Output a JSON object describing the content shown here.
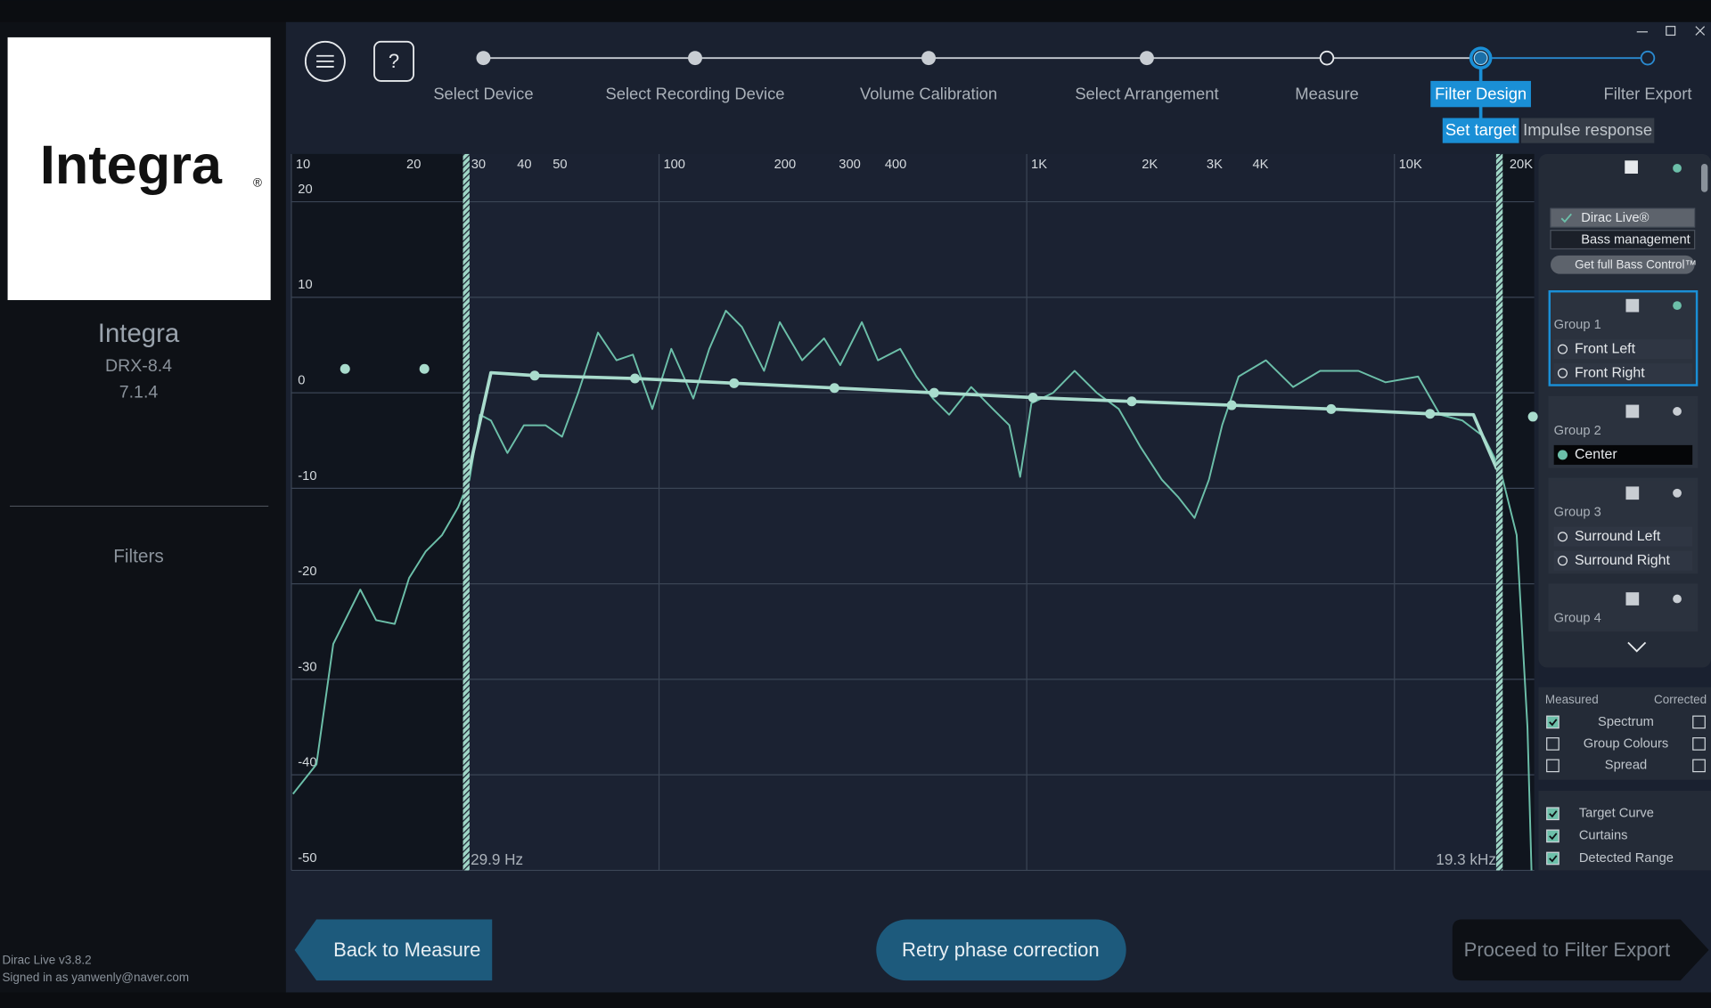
{
  "sidebar": {
    "logo": "Integra",
    "logo_mark": "®",
    "brand": "Integra",
    "model": "DRX-8.4",
    "layout": "7.1.4",
    "section": "Filters",
    "version": "Dirac Live v3.8.2",
    "signed_in": "Signed in as yanwenly@naver.com"
  },
  "toolbar": {
    "help": "?"
  },
  "steps": [
    {
      "label": "Select Device",
      "state": "done"
    },
    {
      "label": "Select Recording Device",
      "state": "done"
    },
    {
      "label": "Volume Calibration",
      "state": "done"
    },
    {
      "label": "Select Arrangement",
      "state": "done"
    },
    {
      "label": "Measure",
      "state": "visited"
    },
    {
      "label": "Filter Design",
      "state": "current"
    },
    {
      "label": "Filter Export",
      "state": "next"
    }
  ],
  "subtabs": [
    {
      "label": "Set target",
      "active": true
    },
    {
      "label": "Impulse response",
      "active": false
    }
  ],
  "graph": {
    "x_scale": "log",
    "xlim": [
      10,
      24000
    ],
    "ylim": [
      -50,
      25
    ],
    "x_grid": "decades",
    "grid": true,
    "xticks": [
      10,
      20,
      30,
      40,
      50,
      100,
      200,
      300,
      400,
      {
        "value": 1000,
        "label": "1K"
      },
      {
        "value": 2000,
        "label": "2K"
      },
      {
        "value": 3000,
        "label": "3K"
      },
      {
        "value": 4000,
        "label": "4K"
      },
      {
        "value": 10000,
        "label": "10K"
      },
      {
        "value": 20000,
        "label": "20K"
      }
    ],
    "yticks": [
      20,
      10,
      0,
      -10,
      -20,
      -30,
      -40,
      -50
    ],
    "curtains": [
      {
        "value": 29.9,
        "label": "29.9 Hz"
      },
      {
        "value": 19300,
        "label": "19.3 kHz"
      }
    ],
    "measured": {
      "color": "#6cbfa9",
      "freq": [
        10.1,
        11.7,
        13.0,
        15.4,
        17.0,
        19.1,
        20.9,
        23.2,
        25.7,
        28.4,
        30.5,
        32.6,
        34.9,
        38.7,
        42.9,
        49.1,
        54.5,
        60.3,
        68.2,
        76.6,
        84.9,
        95.9,
        108,
        124,
        137,
        152,
        168,
        193,
        213,
        245,
        281,
        311,
        356,
        394,
        453,
        501,
        556,
        615,
        706,
        809,
        897,
        960,
        1030,
        1180,
        1350,
        1550,
        1780,
        2040,
        2330,
        2580,
        2860,
        3130,
        3400,
        3770,
        4470,
        5300,
        6280,
        7980,
        9460,
        11600,
        13300,
        15300,
        17500,
        19400,
        21500,
        23000,
        23600
      ],
      "db": [
        -42,
        -38.9,
        -26.3,
        -20.6,
        -23.8,
        -24.2,
        -19.4,
        -16.6,
        -14.9,
        -12,
        -9.1,
        -2.3,
        -2.9,
        -6.3,
        -3.4,
        -3.4,
        -4.6,
        0,
        6.3,
        3.4,
        4,
        -1.7,
        4.6,
        -0.6,
        4.6,
        8.6,
        6.9,
        2.3,
        7.4,
        3.4,
        5.7,
        2.9,
        7.4,
        3.4,
        4.6,
        1.7,
        -0.6,
        -2.3,
        0.6,
        -1.7,
        -3.4,
        -8.8,
        -1.1,
        0,
        2.3,
        0,
        -1.7,
        -5.7,
        -9.1,
        -10.9,
        -13.1,
        -9.1,
        -3.4,
        1.7,
        3.4,
        0.6,
        2.3,
        2.3,
        1.1,
        1.7,
        -2.3,
        -2.9,
        -4.6,
        -8,
        -14.9,
        -35,
        -50
      ]
    },
    "target": {
      "color": "#a9dccd",
      "freq": [
        29.8,
        34.9,
        45.9,
        86,
        160,
        300,
        560,
        1040,
        1930,
        3610,
        6730,
        12500,
        16400,
        19000
      ],
      "db": [
        -9.7,
        2.1,
        1.8,
        1.5,
        1,
        0.5,
        0,
        -0.5,
        -0.9,
        -1.3,
        -1.7,
        -2.2,
        -2.3,
        -8
      ]
    },
    "control_points": {
      "freq": [
        14,
        23,
        45.9,
        86,
        160,
        300,
        560,
        1040,
        1930,
        3610,
        6730,
        12500,
        23800
      ],
      "db": [
        2.5,
        2.5,
        1.8,
        1.5,
        1,
        0.5,
        0,
        -0.5,
        -0.9,
        -1.3,
        -1.7,
        -2.2,
        -2.5
      ]
    }
  },
  "panel": {
    "modes": [
      {
        "label": "Dirac Live®",
        "checked": true
      },
      {
        "label": "Bass management",
        "checked": false
      }
    ],
    "upgrade": "Get full Bass Control™",
    "groups": [
      {
        "label": "Group 1",
        "selected": true,
        "channels": [
          {
            "label": "Front Left",
            "active": false
          },
          {
            "label": "Front Right",
            "active": false
          }
        ]
      },
      {
        "label": "Group 2",
        "selected": false,
        "channels": [
          {
            "label": "Center",
            "active": true
          }
        ]
      },
      {
        "label": "Group 3",
        "selected": false,
        "channels": [
          {
            "label": "Surround Left",
            "active": false
          },
          {
            "label": "Surround Right",
            "active": false
          }
        ]
      },
      {
        "label": "Group 4",
        "selected": false,
        "channels": []
      }
    ],
    "measured_header": "Measured",
    "corrected_header": "Corrected",
    "display": [
      {
        "label": "Spectrum",
        "measured": true,
        "corrected": false
      },
      {
        "label": "Group Colours",
        "measured": false,
        "corrected": false
      },
      {
        "label": "Spread",
        "measured": false,
        "corrected": false
      }
    ],
    "overlays": [
      {
        "label": "Target Curve",
        "checked": true
      },
      {
        "label": "Curtains",
        "checked": true
      },
      {
        "label": "Detected Range",
        "checked": true
      }
    ]
  },
  "buttons": {
    "back": "Back to Measure",
    "retry": "Retry phase correction",
    "proceed": "Proceed to Filter Export"
  }
}
